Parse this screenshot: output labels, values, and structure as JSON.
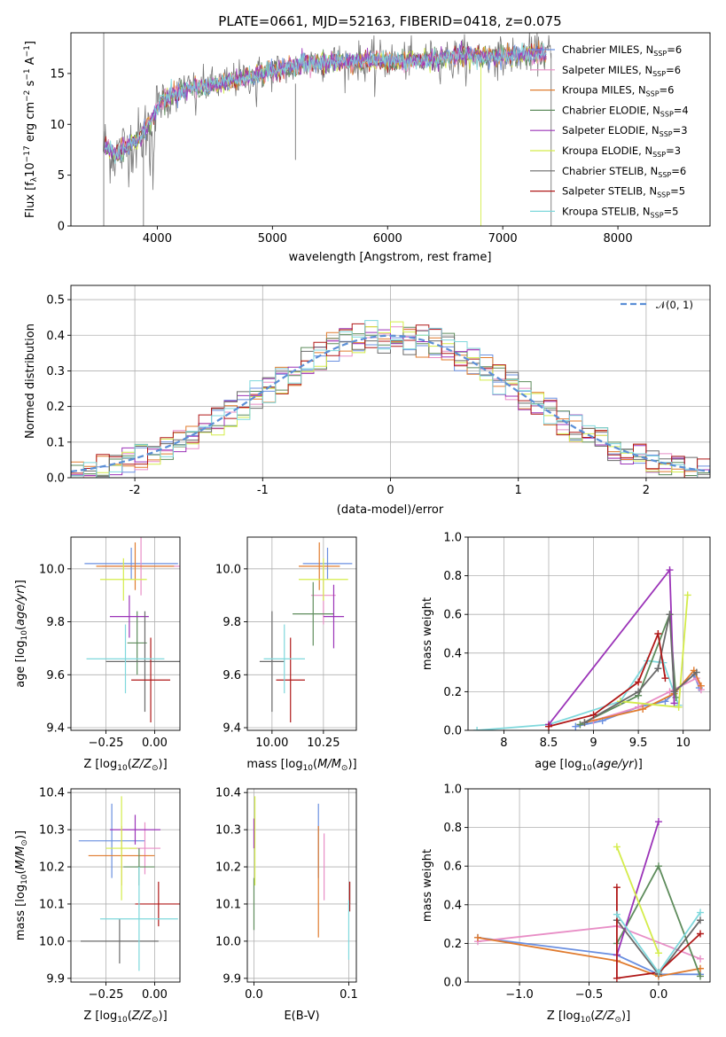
{
  "figure": {
    "title": "PLATE=0661, MJD=52163, FIBERID=0418, z=0.075"
  },
  "colors": {
    "Chabrier MILES": "#6a8fe0",
    "Salpeter MILES": "#e88ec6",
    "Kroupa MILES": "#e07b2e",
    "Chabrier ELODIE": "#5e8c5c",
    "Salpeter ELODIE": "#9b33b8",
    "Kroupa ELODIE": "#d4ec4a",
    "Chabrier STELIB": "#6a6a6a",
    "Salpeter STELIB": "#b01818",
    "Kroupa STELIB": "#7fd8dc"
  },
  "chart_data": [
    {
      "id": "spectrum",
      "type": "line",
      "title": "PLATE=0661, MJD=52163, FIBERID=0418, z=0.075",
      "xlabel": "wavelength [Angstrom, rest frame]",
      "ylabel": "Flux [f_λ 10^-17 erg cm^-2 s^-1 A^-1]",
      "xlim": [
        3250,
        8800
      ],
      "ylim": [
        0,
        19
      ],
      "xticks": [
        4000,
        5000,
        6000,
        7000,
        8000
      ],
      "yticks": [
        0,
        5,
        10,
        15
      ],
      "grid": false,
      "legend_position": "top-right",
      "legend": [
        {
          "model": "Chabrier MILES",
          "nssp": 6
        },
        {
          "model": "Salpeter MILES",
          "nssp": 6
        },
        {
          "model": "Kroupa MILES",
          "nssp": 6
        },
        {
          "model": "Chabrier ELODIE",
          "nssp": 4
        },
        {
          "model": "Salpeter ELODIE",
          "nssp": 3
        },
        {
          "model": "Kroupa ELODIE",
          "nssp": 3
        },
        {
          "model": "Chabrier STELIB",
          "nssp": 6
        },
        {
          "model": "Salpeter STELIB",
          "nssp": 5
        },
        {
          "model": "Kroupa STELIB",
          "nssp": 5
        }
      ],
      "continuum": {
        "x": [
          3550,
          3650,
          3750,
          3850,
          3950,
          4050,
          4150,
          4300,
          4500,
          4700,
          4900,
          5100,
          5300,
          5500,
          5700,
          5900,
          6100,
          6300,
          6500,
          6700,
          6900,
          7100,
          7300
        ],
        "y": [
          7.8,
          7.0,
          8.0,
          8.5,
          10.5,
          12.5,
          13.0,
          13.6,
          13.8,
          14.4,
          15.0,
          15.5,
          16.0,
          16.2,
          16.2,
          16.3,
          16.2,
          16.3,
          16.6,
          16.8,
          16.6,
          16.8,
          17.0
        ]
      }
    },
    {
      "id": "residuals",
      "type": "histogram",
      "xlabel": "(data-model)/error",
      "ylabel": "Normed distribution",
      "xlim": [
        -2.5,
        2.5
      ],
      "ylim": [
        0,
        0.54
      ],
      "xticks": [
        -2,
        -1,
        0,
        1,
        2
      ],
      "yticks": [
        0.0,
        0.1,
        0.2,
        0.3,
        0.4,
        0.5
      ],
      "grid": true,
      "legend_position": "top-right",
      "reference_label": "𝒩(0, 1)",
      "reference_color": "#5b8fd6",
      "bin_width": 0.1
    },
    {
      "id": "age-vs-Z",
      "type": "errorbar",
      "xlabel": "Z [log10(Z/Z⊙)]",
      "ylabel": "age  [log10(age/yr)]",
      "xlim": [
        -0.43,
        0.13
      ],
      "ylim": [
        9.39,
        10.12
      ],
      "xticks": [
        -0.25,
        0.0
      ],
      "xtick_labels": [
        "−0.25",
        "0.00"
      ],
      "yticks": [
        9.4,
        9.6,
        9.8,
        10.0
      ],
      "yticks_labels": [
        "9.4",
        "9.6",
        "9.8",
        "10.0"
      ],
      "grid": true,
      "points": [
        {
          "model": "Chabrier MILES",
          "x": -0.12,
          "y": 10.02,
          "xerr": 0.24,
          "yerr": 0.06
        },
        {
          "model": "Salpeter MILES",
          "x": -0.07,
          "y": 10.01,
          "xerr": 0.2,
          "yerr": 0.11
        },
        {
          "model": "Kroupa MILES",
          "x": -0.1,
          "y": 10.01,
          "xerr": 0.2,
          "yerr": 0.09
        },
        {
          "model": "Chabrier ELODIE",
          "x": -0.09,
          "y": 9.72,
          "xerr": 0.05,
          "yerr": 0.12
        },
        {
          "model": "Salpeter ELODIE",
          "x": -0.13,
          "y": 9.82,
          "xerr": 0.1,
          "yerr": 0.08
        },
        {
          "model": "Kroupa ELODIE",
          "x": -0.16,
          "y": 9.96,
          "xerr": 0.12,
          "yerr": 0.08
        },
        {
          "model": "Chabrier STELIB",
          "x": -0.05,
          "y": 9.65,
          "xerr": 0.2,
          "yerr": 0.19
        },
        {
          "model": "Salpeter STELIB",
          "x": -0.02,
          "y": 9.58,
          "xerr": 0.1,
          "yerr": 0.16
        },
        {
          "model": "Kroupa STELIB",
          "x": -0.15,
          "y": 9.66,
          "xerr": 0.2,
          "yerr": 0.13
        }
      ]
    },
    {
      "id": "age-vs-mass",
      "type": "errorbar",
      "xlabel": "mass [log10(M/M⊙)]",
      "xlim": [
        9.88,
        10.41
      ],
      "ylim": [
        9.39,
        10.12
      ],
      "xticks": [
        10.0,
        10.25
      ],
      "xtick_labels": [
        "10.00",
        "10.25"
      ],
      "yticks": [
        9.4,
        9.6,
        9.8,
        10.0
      ],
      "yticks_labels": [
        "9.4",
        "9.6",
        "9.8",
        "10.0"
      ],
      "grid": true,
      "points": [
        {
          "model": "Chabrier MILES",
          "x": 10.27,
          "y": 10.02,
          "xerr": 0.12,
          "yerr": 0.06
        },
        {
          "model": "Salpeter MILES",
          "x": 10.25,
          "y": 9.9,
          "xerr": 0.06,
          "yerr": 0.11
        },
        {
          "model": "Kroupa MILES",
          "x": 10.23,
          "y": 10.01,
          "xerr": 0.1,
          "yerr": 0.09
        },
        {
          "model": "Chabrier ELODIE",
          "x": 10.2,
          "y": 9.83,
          "xerr": 0.1,
          "yerr": 0.12
        },
        {
          "model": "Salpeter ELODIE",
          "x": 10.3,
          "y": 9.82,
          "xerr": 0.05,
          "yerr": 0.12
        },
        {
          "model": "Kroupa ELODIE",
          "x": 10.25,
          "y": 9.96,
          "xerr": 0.12,
          "yerr": 0.08
        },
        {
          "model": "Chabrier STELIB",
          "x": 10.0,
          "y": 9.65,
          "xerr": 0.06,
          "yerr": 0.19
        },
        {
          "model": "Salpeter STELIB",
          "x": 10.09,
          "y": 9.58,
          "xerr": 0.07,
          "yerr": 0.16
        },
        {
          "model": "Kroupa STELIB",
          "x": 10.06,
          "y": 9.66,
          "xerr": 0.1,
          "yerr": 0.13
        }
      ]
    },
    {
      "id": "weight-vs-age",
      "type": "line",
      "xlabel": "age  [log10(age/yr)]",
      "ylabel": "mass weight",
      "xlim": [
        7.6,
        10.3
      ],
      "ylim": [
        0,
        1.0
      ],
      "xticks": [
        8.0,
        8.5,
        9.0,
        9.5,
        10.0
      ],
      "yticks": [
        0.0,
        0.2,
        0.4,
        0.6,
        0.8,
        1.0
      ],
      "grid": true,
      "series": [
        {
          "model": "Kroupa STELIB",
          "x": [
            7.7,
            8.5,
            9.3,
            9.6,
            9.78,
            9.95
          ],
          "y": [
            0.0,
            0.03,
            0.15,
            0.36,
            0.35,
            0.13
          ]
        },
        {
          "model": "Chabrier MILES",
          "x": [
            8.8,
            9.1,
            9.5,
            9.8,
            10.12,
            10.18
          ],
          "y": [
            0.02,
            0.05,
            0.12,
            0.15,
            0.29,
            0.22
          ]
        },
        {
          "model": "Salpeter MILES",
          "x": [
            9.0,
            9.5,
            9.85,
            10.15,
            10.2
          ],
          "y": [
            0.05,
            0.12,
            0.2,
            0.27,
            0.21
          ]
        },
        {
          "model": "Kroupa MILES",
          "x": [
            8.9,
            9.55,
            9.9,
            10.12,
            10.2
          ],
          "y": [
            0.04,
            0.11,
            0.19,
            0.31,
            0.23
          ]
        },
        {
          "model": "Chabrier ELODIE",
          "x": [
            8.85,
            9.5,
            9.85,
            9.92
          ],
          "y": [
            0.03,
            0.18,
            0.6,
            0.17
          ]
        },
        {
          "model": "Salpeter ELODIE",
          "x": [
            8.5,
            9.85,
            9.9
          ],
          "y": [
            0.03,
            0.83,
            0.14
          ]
        },
        {
          "model": "Kroupa ELODIE",
          "x": [
            9.3,
            9.95,
            10.05
          ],
          "y": [
            0.15,
            0.12,
            0.7
          ]
        },
        {
          "model": "Chabrier STELIB",
          "x": [
            8.9,
            9.5,
            9.72,
            9.85,
            9.9,
            10.15
          ],
          "y": [
            0.04,
            0.2,
            0.32,
            0.6,
            0.2,
            0.3
          ]
        },
        {
          "model": "Salpeter STELIB",
          "x": [
            8.5,
            9.0,
            9.5,
            9.72,
            9.8
          ],
          "y": [
            0.02,
            0.08,
            0.25,
            0.5,
            0.27
          ]
        }
      ]
    },
    {
      "id": "mass-vs-Z",
      "type": "errorbar",
      "xlabel": "Z [log10(Z/Z⊙)]",
      "ylabel": "mass [log10(M/M⊙)]",
      "xlim": [
        -0.43,
        0.13
      ],
      "ylim": [
        9.89,
        10.41
      ],
      "xticks": [
        -0.25,
        0.0
      ],
      "xtick_labels": [
        "−0.25",
        "0.00"
      ],
      "yticks": [
        9.9,
        10.0,
        10.1,
        10.2,
        10.3,
        10.4
      ],
      "yticks_labels": [
        "9.9",
        "10.0",
        "10.1",
        "10.2",
        "10.3",
        "10.4"
      ],
      "grid": true,
      "points": [
        {
          "model": "Chabrier MILES",
          "x": -0.22,
          "y": 10.27,
          "xerr": 0.17,
          "yerr": 0.1
        },
        {
          "model": "Salpeter MILES",
          "x": -0.05,
          "y": 10.25,
          "xerr": 0.08,
          "yerr": 0.07
        },
        {
          "model": "Kroupa MILES",
          "x": -0.17,
          "y": 10.23,
          "xerr": 0.17,
          "yerr": 0.08
        },
        {
          "model": "Chabrier ELODIE",
          "x": -0.08,
          "y": 10.2,
          "xerr": 0.08,
          "yerr": 0.05
        },
        {
          "model": "Salpeter ELODIE",
          "x": -0.1,
          "y": 10.3,
          "xerr": 0.13,
          "yerr": 0.04
        },
        {
          "model": "Kroupa ELODIE",
          "x": -0.17,
          "y": 10.25,
          "xerr": 0.08,
          "yerr": 0.14
        },
        {
          "model": "Chabrier STELIB",
          "x": -0.18,
          "y": 10.0,
          "xerr": 0.2,
          "yerr": 0.06
        },
        {
          "model": "Salpeter STELIB",
          "x": 0.02,
          "y": 10.1,
          "xerr": 0.12,
          "yerr": 0.06
        },
        {
          "model": "Kroupa STELIB",
          "x": -0.08,
          "y": 10.06,
          "xerr": 0.2,
          "yerr": 0.14
        }
      ]
    },
    {
      "id": "mass-vs-EBV",
      "type": "errorbar",
      "xlabel": "E(B-V)",
      "xlim": [
        -0.007,
        0.108
      ],
      "ylim": [
        9.89,
        10.41
      ],
      "xticks": [
        0.0,
        0.1
      ],
      "xtick_labels": [
        "0.0",
        "0.1"
      ],
      "yticks": [
        9.9,
        10.0,
        10.1,
        10.2,
        10.3,
        10.4
      ],
      "yticks_labels": [
        "9.9",
        "10.0",
        "10.1",
        "10.2",
        "10.3",
        "10.4"
      ],
      "grid": true,
      "points": [
        {
          "model": "Chabrier MILES",
          "x": 0.068,
          "y": 10.27,
          "xerr": 0.0,
          "yerr": 0.1
        },
        {
          "model": "Salpeter MILES",
          "x": 0.074,
          "y": 10.2,
          "xerr": 0.0,
          "yerr": 0.09
        },
        {
          "model": "Kroupa MILES",
          "x": 0.068,
          "y": 10.16,
          "xerr": 0.0,
          "yerr": 0.15
        },
        {
          "model": "Chabrier ELODIE",
          "x": 0.0,
          "y": 10.1,
          "xerr": 0.0,
          "yerr": 0.07
        },
        {
          "model": "Salpeter ELODIE",
          "x": 0.0,
          "y": 10.29,
          "xerr": 0.0,
          "yerr": 0.04
        },
        {
          "model": "Kroupa ELODIE",
          "x": 0.001,
          "y": 10.27,
          "xerr": 0.0,
          "yerr": 0.12
        },
        {
          "model": "Chabrier STELIB",
          "x": 0.101,
          "y": 10.13,
          "xerr": 0.0,
          "yerr": 0.03
        },
        {
          "model": "Salpeter STELIB",
          "x": 0.101,
          "y": 10.12,
          "xerr": 0.0,
          "yerr": 0.04
        },
        {
          "model": "Kroupa STELIB",
          "x": 0.1,
          "y": 10.03,
          "xerr": 0.0,
          "yerr": 0.08
        }
      ]
    },
    {
      "id": "weight-vs-Z",
      "type": "line",
      "xlabel": "Z [log10(Z/Z⊙)]",
      "ylabel": "mass weight",
      "xlim": [
        -1.37,
        0.37
      ],
      "ylim": [
        0,
        1.0
      ],
      "xticks": [
        -1.0,
        -0.5,
        0.0
      ],
      "xtick_labels": [
        "−1.0",
        "−0.5",
        "0.0"
      ],
      "yticks": [
        0.0,
        0.2,
        0.4,
        0.6,
        0.8,
        1.0
      ],
      "grid": true,
      "series": [
        {
          "model": "Chabrier MILES",
          "x": [
            -1.3,
            -0.3,
            0.0,
            0.3
          ],
          "y": [
            0.23,
            0.14,
            0.04,
            0.04
          ]
        },
        {
          "model": "Salpeter MILES",
          "x": [
            -1.3,
            -0.3,
            0.3
          ],
          "y": [
            0.21,
            0.29,
            0.12
          ]
        },
        {
          "model": "Kroupa MILES",
          "x": [
            -1.3,
            -0.3,
            0.0,
            0.3
          ],
          "y": [
            0.23,
            0.11,
            0.03,
            0.07
          ]
        },
        {
          "model": "Chabrier ELODIE",
          "x": [
            -0.3,
            0.0,
            0.3
          ],
          "y": [
            0.2,
            0.6,
            0.03
          ]
        },
        {
          "model": "Salpeter ELODIE",
          "x": [
            -0.3,
            0.0
          ],
          "y": [
            0.14,
            0.83
          ]
        },
        {
          "model": "Kroupa ELODIE",
          "x": [
            -0.3,
            0.0
          ],
          "y": [
            0.7,
            0.15
          ]
        },
        {
          "model": "Chabrier STELIB",
          "x": [
            -0.3,
            0.0,
            0.3
          ],
          "y": [
            0.32,
            0.04,
            0.32
          ]
        },
        {
          "model": "Salpeter STELIB",
          "x": [
            -0.3,
            -0.3,
            0.0,
            0.3
          ],
          "y": [
            0.49,
            0.02,
            0.05,
            0.25
          ]
        },
        {
          "model": "Kroupa STELIB",
          "x": [
            -0.3,
            0.0,
            0.3
          ],
          "y": [
            0.35,
            0.05,
            0.36
          ]
        }
      ]
    }
  ]
}
